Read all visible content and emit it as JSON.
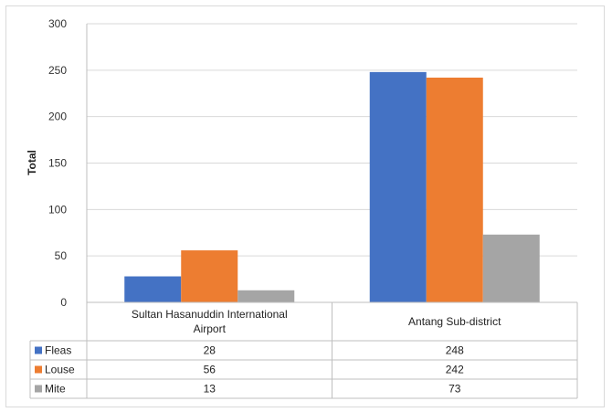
{
  "chart_data": {
    "type": "bar",
    "title": "",
    "xlabel": "",
    "ylabel": "Total",
    "ylim": [
      0,
      300
    ],
    "yticks": [
      0,
      50,
      100,
      150,
      200,
      250,
      300
    ],
    "grid": true,
    "legend": "data-table",
    "categories": [
      [
        "Sultan Hasanuddin International",
        "Airport"
      ],
      [
        "Antang Sub-district"
      ]
    ],
    "series": [
      {
        "name": "Fleas",
        "color": "#4472c4",
        "values": [
          28,
          248
        ]
      },
      {
        "name": "Louse",
        "color": "#ed7d31",
        "values": [
          56,
          242
        ]
      },
      {
        "name": "Mite",
        "color": "#a5a5a5",
        "values": [
          13,
          73
        ]
      }
    ]
  }
}
